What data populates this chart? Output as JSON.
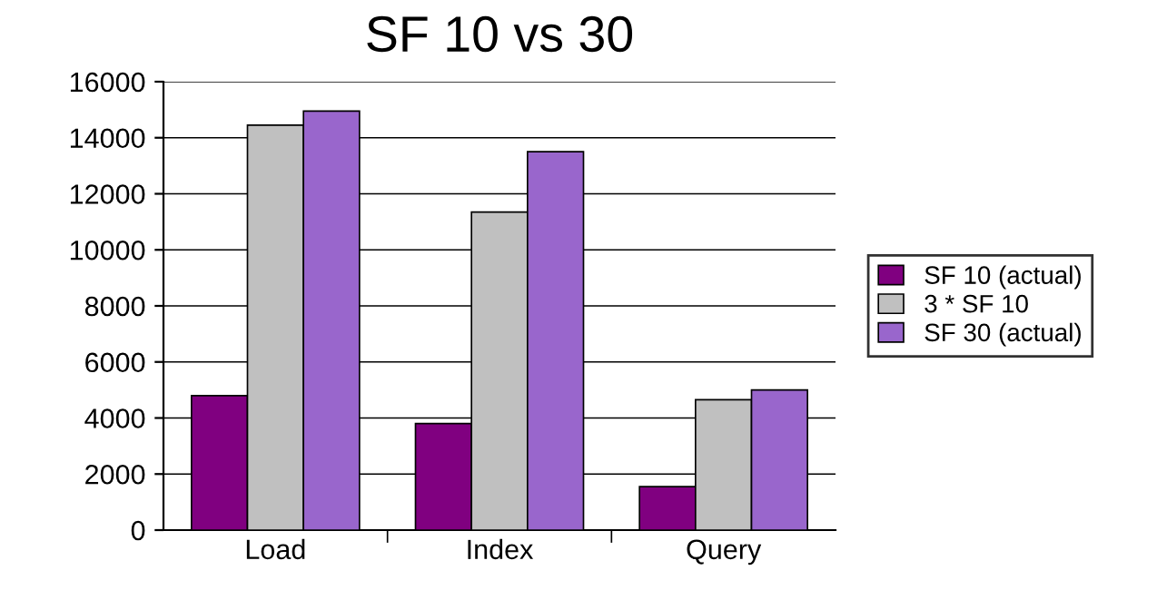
{
  "chart_data": {
    "type": "bar",
    "title": "SF 10 vs 30",
    "categories": [
      "Load",
      "Index",
      "Query"
    ],
    "series": [
      {
        "name": "SF 10 (actual)",
        "color": "#800080",
        "values": [
          4800,
          3800,
          1550
        ]
      },
      {
        "name": "3 * SF 10",
        "color": "#c0c0c0",
        "values": [
          14450,
          11350,
          4650
        ]
      },
      {
        "name": "SF 30 (actual)",
        "color": "#9966cc",
        "values": [
          14950,
          13500,
          5000
        ]
      }
    ],
    "ylim": [
      0,
      16000
    ],
    "yticks": [
      0,
      2000,
      4000,
      6000,
      8000,
      10000,
      12000,
      14000,
      16000
    ],
    "grid": "y",
    "legend": "right"
  }
}
